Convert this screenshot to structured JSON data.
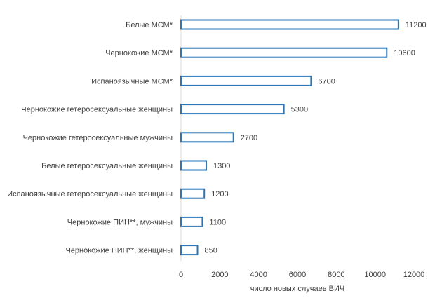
{
  "chart_data": {
    "type": "bar",
    "orientation": "horizontal",
    "categories": [
      "Белые МСМ*",
      "Чернокожие МСМ*",
      "Испаноязычные МСМ*",
      "Чернокожие гетеросексуальные женщины",
      "Чернокожие гетеросексуальные мужчины",
      "Белые гетеросексуальные женщины",
      "Испаноязычные гетеросексуальные женщины",
      "Чернокожие ПИН**, мужчины",
      "Чернокожие ПИН**, женщины"
    ],
    "values": [
      11200,
      10600,
      6700,
      5300,
      2700,
      1300,
      1200,
      1100,
      850
    ],
    "value_labels": [
      "11200",
      "10600",
      "6700",
      "5300",
      "2700",
      "1300",
      "1200",
      "1100",
      "850"
    ],
    "xlabel": "число новых случаев ВИЧ",
    "ylabel": "",
    "xlim": [
      0,
      12000
    ],
    "xticks": [
      0,
      2000,
      4000,
      6000,
      8000,
      10000,
      12000
    ],
    "xtick_labels": [
      "0",
      "2000",
      "4000",
      "6000",
      "8000",
      "10000",
      "12000"
    ],
    "grid": false,
    "legend": "none",
    "colors": {
      "bar_outline": "#2e75b6",
      "bar_fill": "#ffffff",
      "text": "#404040",
      "axis": "#d9d9d9"
    }
  }
}
